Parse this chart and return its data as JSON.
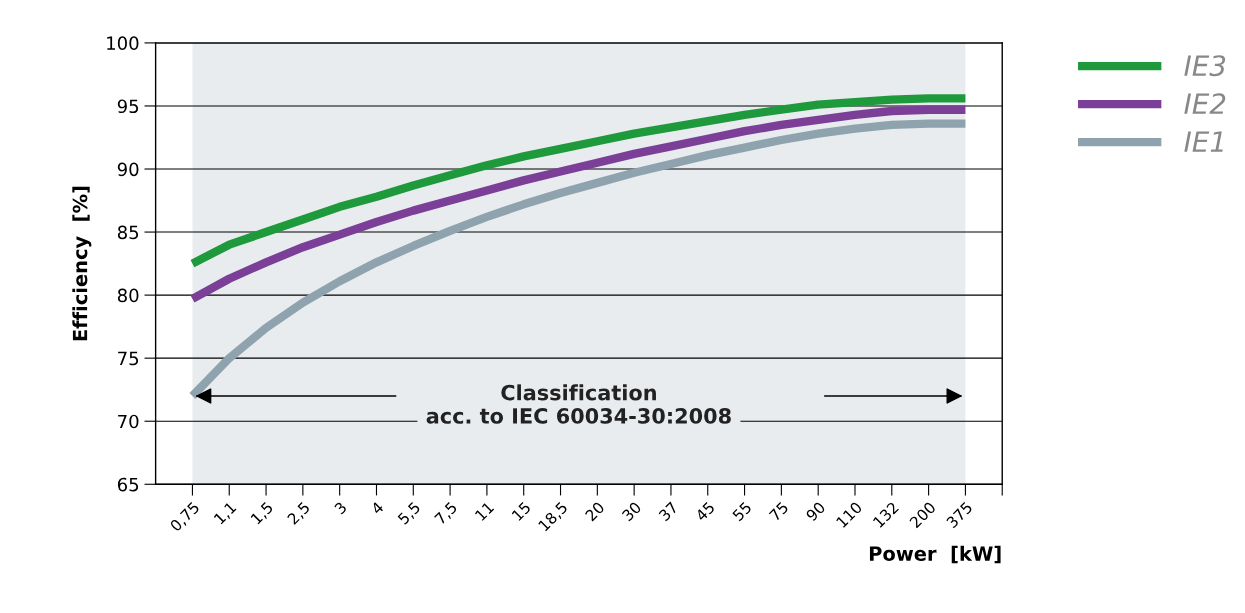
{
  "chart_data": {
    "type": "line",
    "categories": [
      "0,75",
      "1,1",
      "1,5",
      "2,5",
      "3",
      "4",
      "5,5",
      "7,5",
      "11",
      "15",
      "18,5",
      "20",
      "30",
      "37",
      "45",
      "55",
      "75",
      "90",
      "110",
      "132",
      "200",
      "375",
      null
    ],
    "series": [
      {
        "name": "IE3",
        "color": "#1e9a3c",
        "values": [
          82.5,
          84.0,
          85.0,
          86.0,
          87.0,
          87.8,
          88.7,
          89.5,
          90.3,
          91.0,
          91.6,
          92.2,
          92.8,
          93.3,
          93.8,
          94.3,
          94.7,
          95.1,
          95.3,
          95.5,
          95.6,
          95.6,
          null
        ]
      },
      {
        "name": "IE2",
        "color": "#7b3f98",
        "values": [
          79.7,
          81.3,
          82.6,
          83.8,
          84.8,
          85.8,
          86.7,
          87.5,
          88.3,
          89.1,
          89.8,
          90.5,
          91.2,
          91.8,
          92.4,
          93.0,
          93.5,
          93.9,
          94.3,
          94.6,
          94.7,
          94.7,
          null
        ]
      },
      {
        "name": "IE1",
        "color": "#8fa3ae",
        "values": [
          72.0,
          75.0,
          77.4,
          79.4,
          81.1,
          82.6,
          83.9,
          85.1,
          86.2,
          87.2,
          88.1,
          88.9,
          89.7,
          90.4,
          91.1,
          91.7,
          92.3,
          92.8,
          93.2,
          93.5,
          93.6,
          93.6,
          null
        ]
      }
    ],
    "xlabel": "Power  [kW]",
    "ylabel": "Efficiency  [%]",
    "ylim": [
      65,
      100
    ],
    "yticks": [
      65,
      70,
      75,
      80,
      85,
      90,
      95,
      100
    ],
    "grid": "y",
    "legend": "top right",
    "marker": "none",
    "line_style": "solid",
    "bands": [
      {
        "axis": "x",
        "from": "0,75",
        "to": "375",
        "color": "#e8ecef"
      }
    ],
    "annotations": [
      "Classification\nacc. to IEC 60034-30:2008"
    ]
  }
}
